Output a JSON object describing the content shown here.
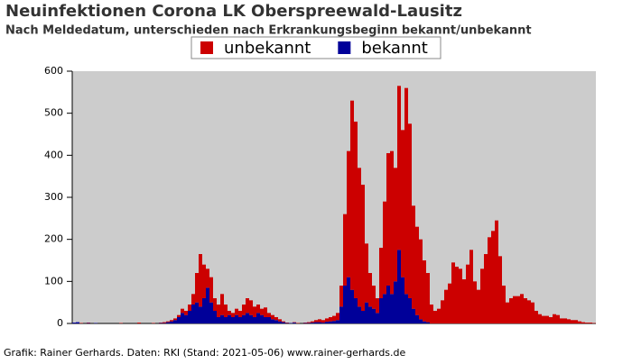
{
  "chart_data": {
    "type": "stacked-bar",
    "title": "Neuinfektionen Corona LK Oberspreewald-Lausitz",
    "subtitle": "Nach Meldedatum, unterschieden nach Erkrankungsbeginn bekannt/unbekannt",
    "footer": "Grafik: Rainer Gerhards. Daten: RKI (Stand: 2021-05-06) www.rainer-gerhards.de",
    "legend": "top",
    "ylim": [
      0,
      600
    ],
    "yticks": [
      0,
      100,
      200,
      300,
      400,
      500,
      600
    ],
    "categories": [
      null,
      null,
      null,
      null,
      null,
      null,
      null,
      null,
      null,
      null,
      null,
      null,
      null,
      null,
      null,
      null,
      null,
      null,
      null,
      null,
      null,
      null,
      null,
      null,
      null,
      null,
      null,
      null,
      null,
      null,
      null,
      null,
      null,
      null,
      null,
      null,
      null,
      null,
      null,
      null,
      null,
      null,
      null,
      null,
      null,
      null,
      null,
      null,
      null,
      null,
      null,
      null,
      null,
      null,
      null,
      null,
      null,
      null,
      null,
      null,
      null,
      null,
      null,
      null,
      null,
      null,
      null,
      null,
      null,
      null,
      null,
      null,
      null,
      null,
      null,
      null,
      null,
      null,
      null,
      null,
      null,
      null,
      null,
      null,
      null,
      null,
      null,
      null,
      null,
      null,
      null,
      null,
      null,
      null,
      null,
      null,
      null,
      null,
      null,
      null,
      null,
      null,
      null,
      null,
      null,
      null,
      null,
      null,
      null,
      null,
      null,
      null,
      null,
      null,
      null,
      null,
      null,
      null,
      null,
      null,
      null,
      null,
      null,
      null,
      null,
      null,
      null,
      null,
      null,
      null,
      null,
      null,
      null,
      null,
      null,
      null,
      null,
      null,
      null,
      null,
      null,
      null,
      null,
      null,
      null
    ],
    "series": [
      {
        "name": "unbekannt",
        "color": "#cc0000",
        "values": [
          0,
          0,
          1,
          0,
          1,
          0,
          0,
          0,
          0,
          0,
          0,
          0,
          0,
          1,
          0,
          0,
          0,
          0,
          2,
          0,
          0,
          0,
          1,
          0,
          1,
          2,
          2,
          3,
          4,
          5,
          10,
          10,
          15,
          25,
          70,
          125,
          80,
          45,
          60,
          30,
          30,
          50,
          30,
          10,
          10,
          15,
          15,
          25,
          35,
          35,
          25,
          20,
          15,
          23,
          10,
          10,
          7,
          5,
          2,
          1,
          0,
          1,
          1,
          0,
          1,
          2,
          3,
          5,
          7,
          6,
          8,
          10,
          12,
          17,
          50,
          170,
          300,
          450,
          420,
          330,
          300,
          140,
          80,
          55,
          35,
          120,
          220,
          315,
          340,
          270,
          390,
          350,
          490,
          415,
          245,
          210,
          190,
          145,
          117,
          45,
          30,
          35,
          55,
          80,
          95,
          145,
          135,
          130,
          105,
          140,
          175,
          100,
          80,
          130,
          165,
          205,
          220,
          245,
          160,
          90,
          50,
          60,
          65,
          65,
          70,
          60,
          55,
          50,
          30,
          22,
          18,
          18,
          15,
          22,
          20,
          12,
          12,
          10,
          8,
          8,
          5,
          3,
          2,
          2,
          1
        ]
      },
      {
        "name": "bekannt",
        "color": "#000099",
        "values": [
          2,
          3,
          0,
          0,
          1,
          0,
          1,
          0,
          0,
          0,
          0,
          0,
          0,
          0,
          0,
          0,
          0,
          0,
          0,
          0,
          0,
          0,
          0,
          0,
          1,
          1,
          3,
          5,
          8,
          15,
          25,
          20,
          30,
          45,
          50,
          40,
          60,
          85,
          50,
          30,
          15,
          20,
          15,
          20,
          15,
          20,
          15,
          20,
          25,
          20,
          15,
          25,
          20,
          15,
          15,
          10,
          8,
          5,
          3,
          1,
          1,
          2,
          0,
          0,
          1,
          1,
          2,
          3,
          3,
          2,
          4,
          5,
          6,
          8,
          40,
          90,
          110,
          80,
          60,
          40,
          30,
          50,
          40,
          35,
          25,
          60,
          70,
          90,
          70,
          100,
          175,
          110,
          70,
          60,
          35,
          20,
          10,
          5,
          3,
          0,
          0,
          0,
          0,
          0,
          0,
          0,
          0,
          0,
          0,
          0,
          0,
          0,
          0,
          0,
          0,
          0,
          0,
          0,
          0,
          0,
          0,
          0,
          0,
          0,
          0,
          0,
          0,
          0,
          0,
          0,
          0,
          0,
          0,
          0,
          0,
          0,
          0,
          0,
          0,
          0,
          0,
          0,
          0,
          0,
          0
        ]
      }
    ]
  }
}
